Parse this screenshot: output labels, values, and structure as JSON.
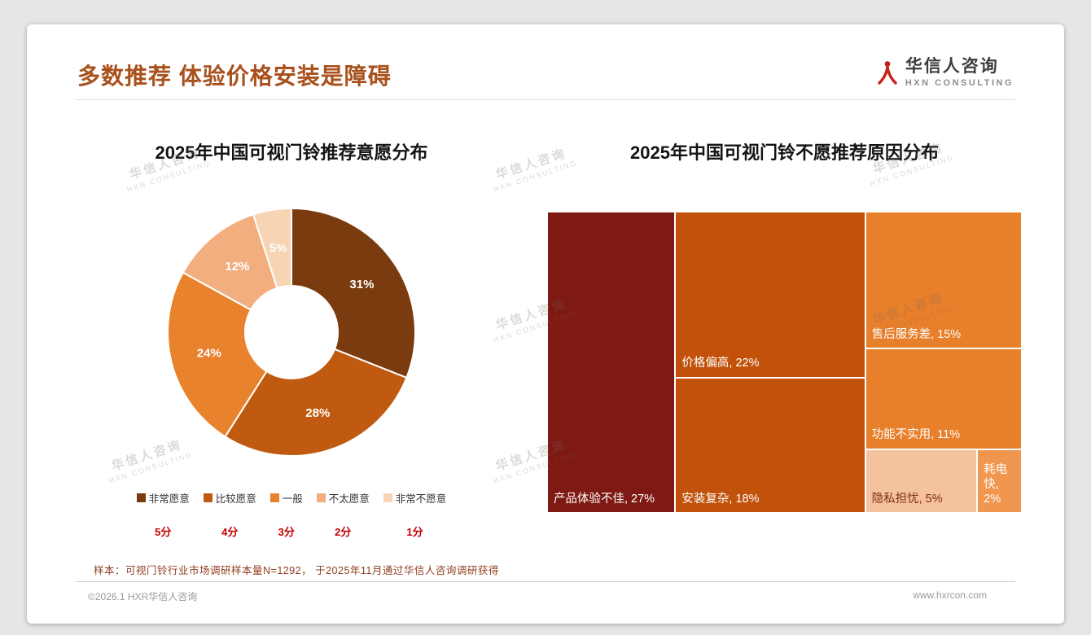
{
  "page": {
    "title": "多数推荐 体验价格安装是障碍",
    "footnote": "样本：可视门铃行业市场调研样本量N=1292， 于2025年11月通过华信人咨询调研获得",
    "footer_left": "©2026.1 HXR华信人咨询",
    "footer_right": "www.hxrcon.com"
  },
  "logo": {
    "name_cn": "华信人咨询",
    "name_en": "HXN CONSULTING",
    "mark_color": "#C8231C"
  },
  "watermark": {
    "line1": "华信人咨询",
    "line2": "HXN CONSULTING"
  },
  "chart_data": [
    {
      "type": "pie",
      "subtype": "donut",
      "title": "2025年中国可视门铃推荐意愿分布",
      "categories": [
        "非常愿意",
        "比较愿意",
        "一般",
        "不太愿意",
        "非常不愿意"
      ],
      "values": [
        31,
        28,
        24,
        12,
        5
      ],
      "unit": "%",
      "scores": [
        "5分",
        "4分",
        "3分",
        "2分",
        "1分"
      ],
      "colors": [
        "#7A3B0F",
        "#C05A10",
        "#E8822D",
        "#F2AE7E",
        "#F6D4B4"
      ],
      "label_color": "#ffffff",
      "start_angle_deg": 0,
      "direction": "clockwise",
      "inner_radius_ratio": 0.375,
      "legend_position": "bottom"
    },
    {
      "type": "treemap",
      "title": "2025年中国可视门铃不愿推荐原因分布",
      "label_format": "{label}, {value}%",
      "items": [
        {
          "label": "产品体验不佳",
          "value": 27,
          "color": "#7E1A13",
          "text_color": "#ffffff",
          "rect": {
            "x": 0,
            "y": 0,
            "w": 27,
            "h": 100
          }
        },
        {
          "label": "价格偏高",
          "value": 22,
          "color": "#C2520B",
          "text_color": "#ffffff",
          "rect": {
            "x": 27,
            "y": 0,
            "w": 40,
            "h": 55
          }
        },
        {
          "label": "安装复杂",
          "value": 18,
          "color": "#C2520B",
          "text_color": "#ffffff",
          "rect": {
            "x": 27,
            "y": 55,
            "w": 40,
            "h": 45
          }
        },
        {
          "label": "售后服务差",
          "value": 15,
          "color": "#E87F2A",
          "text_color": "#ffffff",
          "rect": {
            "x": 67,
            "y": 0,
            "w": 33,
            "h": 45.4
          }
        },
        {
          "label": "功能不实用",
          "value": 11,
          "color": "#E87F2A",
          "text_color": "#ffffff",
          "rect": {
            "x": 67,
            "y": 45.4,
            "w": 33,
            "h": 33.4
          }
        },
        {
          "label": "隐私担忧",
          "value": 5,
          "color": "#F4C29D",
          "text_color": "#7E2F12",
          "rect": {
            "x": 67,
            "y": 78.8,
            "w": 23.6,
            "h": 21.2
          }
        },
        {
          "label": "耗电快",
          "value": 2,
          "color": "#F0964E",
          "text_color": "#ffffff",
          "rect": {
            "x": 90.6,
            "y": 78.8,
            "w": 9.4,
            "h": 21.2
          }
        }
      ]
    }
  ]
}
